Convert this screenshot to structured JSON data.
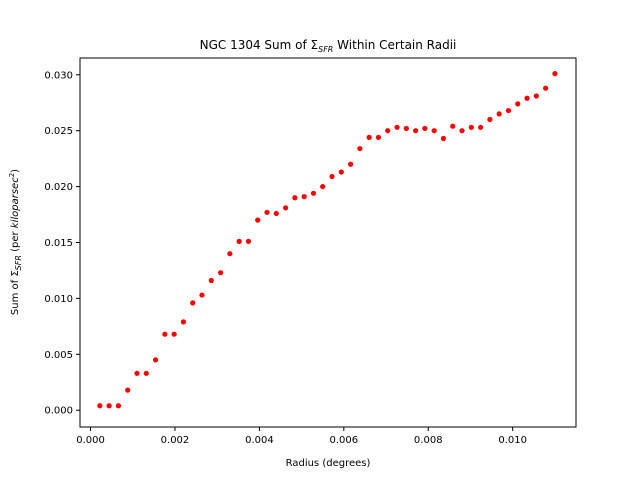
{
  "chart_data": {
    "type": "scatter",
    "title": {
      "prefix": "NGC 1304 Sum of Σ",
      "subscript": "SFR",
      "suffix": " Within Certain Radii"
    },
    "xlabel": "Radius (degrees)",
    "ylabel": {
      "prefix": "Sum of Σ",
      "subscript": "SFR",
      "middle": " (per ",
      "italic": "kiloparsec",
      "superscript": "2",
      "suffix": ")"
    },
    "xlim": [
      -0.00025,
      0.0115
    ],
    "ylim": [
      -0.0015,
      0.0315
    ],
    "x_ticks": [
      0.0,
      0.002,
      0.004,
      0.006,
      0.008,
      0.01
    ],
    "x_tick_labels": [
      "0.000",
      "0.002",
      "0.004",
      "0.006",
      "0.008",
      "0.010"
    ],
    "y_ticks": [
      0.0,
      0.005,
      0.01,
      0.015,
      0.02,
      0.025,
      0.03
    ],
    "y_tick_labels": [
      "0.000",
      "0.005",
      "0.010",
      "0.015",
      "0.020",
      "0.025",
      "0.030"
    ],
    "grid": false,
    "marker_color": "#ff0000",
    "series": [
      {
        "x": [
          0.00022,
          0.00044,
          0.00066,
          0.00088,
          0.0011,
          0.00132,
          0.00154,
          0.00176,
          0.00198,
          0.0022,
          0.00242,
          0.00264,
          0.00286,
          0.00308,
          0.0033,
          0.00352,
          0.00374,
          0.00396,
          0.00418,
          0.0044,
          0.00462,
          0.00484,
          0.00506,
          0.00528,
          0.0055,
          0.00572,
          0.00594,
          0.00616,
          0.00638,
          0.0066,
          0.00682,
          0.00704,
          0.00726,
          0.00748,
          0.0077,
          0.00792,
          0.00814,
          0.00836,
          0.00858,
          0.0088,
          0.00902,
          0.00924,
          0.00946,
          0.00968,
          0.0099,
          0.01012,
          0.01034,
          0.01056,
          0.01078,
          0.011
        ],
        "y": [
          0.0004,
          0.0004,
          0.0004,
          0.0018,
          0.0033,
          0.0033,
          0.0045,
          0.0068,
          0.0068,
          0.0079,
          0.0096,
          0.0103,
          0.0116,
          0.0123,
          0.014,
          0.0151,
          0.0151,
          0.017,
          0.0177,
          0.0176,
          0.0181,
          0.019,
          0.0191,
          0.0194,
          0.02,
          0.0209,
          0.0213,
          0.022,
          0.0234,
          0.0244,
          0.0244,
          0.025,
          0.0253,
          0.0252,
          0.025,
          0.0252,
          0.025,
          0.0243,
          0.0254,
          0.025,
          0.0253,
          0.0253,
          0.026,
          0.0265,
          0.0268,
          0.0274,
          0.0279,
          0.0281,
          0.0288,
          0.0301
        ]
      }
    ]
  }
}
